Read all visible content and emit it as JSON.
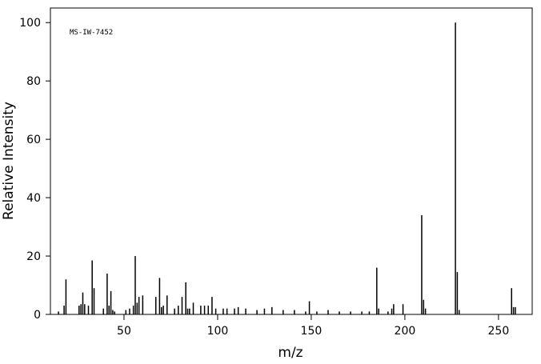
{
  "chart_data": {
    "type": "bar",
    "annotation": "MS-IW-7452",
    "xlabel": "m/z",
    "ylabel": "Relative Intensity",
    "x": [
      15,
      18,
      19,
      26,
      27,
      28,
      29,
      31,
      33,
      34,
      39,
      41,
      42,
      43,
      44,
      45,
      51,
      53,
      55,
      56,
      57,
      58,
      60,
      67,
      69,
      70,
      71,
      73,
      77,
      79,
      81,
      83,
      84,
      85,
      87,
      91,
      93,
      95,
      97,
      99,
      103,
      105,
      109,
      111,
      115,
      121,
      125,
      129,
      135,
      141,
      147,
      149,
      153,
      159,
      165,
      171,
      177,
      181,
      185,
      186,
      191,
      193,
      194,
      199,
      209,
      210,
      211,
      227,
      228,
      229,
      257,
      258,
      259
    ],
    "values": [
      1,
      3,
      12,
      3,
      3.5,
      7.5,
      3.5,
      3,
      18.5,
      9,
      2,
      14,
      3,
      8,
      1.5,
      1,
      1.5,
      2,
      3,
      20,
      4,
      6,
      6.5,
      6,
      12.5,
      2.5,
      3,
      6.5,
      2,
      3,
      6,
      11,
      2,
      2,
      4,
      3,
      3,
      3,
      6,
      2,
      2,
      2,
      2,
      2.5,
      2,
      1.5,
      2,
      2.5,
      1.5,
      1.5,
      1,
      4.5,
      1,
      1.5,
      1,
      1,
      1,
      1,
      16,
      2,
      1,
      2,
      3.5,
      3.5,
      34,
      5,
      2,
      100,
      14.5,
      1.5,
      9,
      2.5,
      2.5
    ],
    "color": "#000000",
    "xlim": [
      10.7,
      268
    ],
    "xticks": [
      50,
      100,
      150,
      200,
      250
    ],
    "ylim": [
      0,
      105
    ],
    "yticks": [
      0,
      20,
      40,
      60,
      80,
      100
    ]
  }
}
